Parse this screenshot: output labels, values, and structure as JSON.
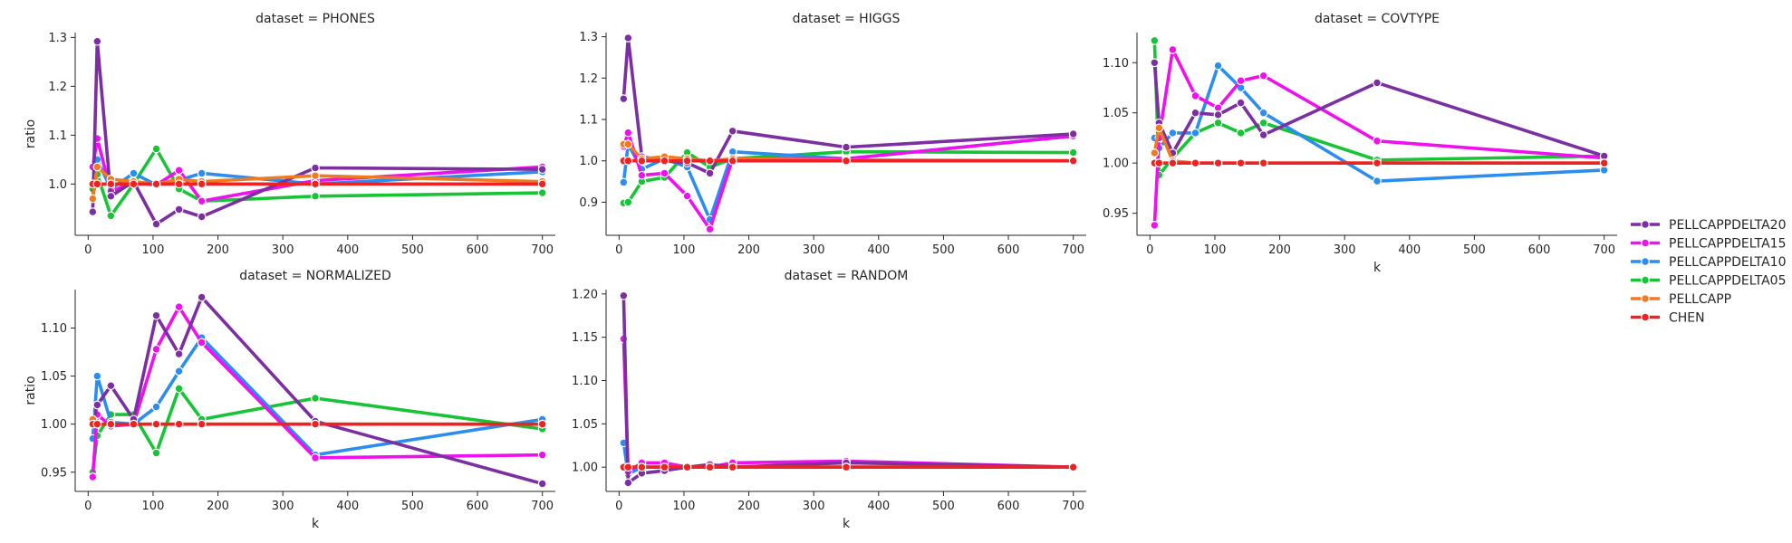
{
  "chart_data": [
    {
      "type": "line",
      "title": "dataset = PHONES",
      "xlabel": "",
      "ylabel": "ratio",
      "xlim": [
        -20,
        720
      ],
      "ylim": [
        0.895,
        1.31
      ],
      "xticks": [
        0,
        100,
        200,
        300,
        400,
        500,
        600,
        700
      ],
      "yticks": [
        1.0,
        1.1,
        1.2,
        1.3
      ],
      "yticklabels": [
        "1.0",
        "1.1",
        "1.2",
        "1.3"
      ],
      "x": [
        7,
        14,
        35,
        70,
        105,
        140,
        175,
        350,
        700
      ],
      "series": [
        {
          "name": "PELLCAPPDELTA20",
          "values": [
            0.943,
            1.292,
            0.975,
            1.005,
            0.918,
            0.948,
            0.933,
            1.033,
            1.03
          ]
        },
        {
          "name": "PELLCAPPDELTA15",
          "values": [
            1.035,
            1.093,
            0.985,
            1.003,
            0.998,
            1.028,
            0.965,
            1.007,
            1.035
          ]
        },
        {
          "name": "PELLCAPPDELTA10",
          "values": [
            1.002,
            1.05,
            0.99,
            1.022,
            0.998,
            1.008,
            1.022,
            1.0,
            1.025
          ]
        },
        {
          "name": "PELLCAPPDELTA05",
          "values": [
            0.99,
            1.02,
            0.935,
            1.0,
            1.072,
            0.99,
            0.965,
            0.975,
            0.982
          ]
        },
        {
          "name": "PELLCAPP",
          "values": [
            0.97,
            1.035,
            1.01,
            1.005,
            1.0,
            1.01,
            1.005,
            1.017,
            1.005
          ]
        },
        {
          "name": "CHEN",
          "values": [
            1.0,
            1.0,
            1.0,
            1.0,
            1.0,
            1.0,
            1.0,
            1.0,
            1.0
          ]
        }
      ]
    },
    {
      "type": "line",
      "title": "dataset = HIGGS",
      "xlabel": "",
      "ylabel": "",
      "xlim": [
        -20,
        720
      ],
      "ylim": [
        0.82,
        1.31
      ],
      "xticks": [
        0,
        100,
        200,
        300,
        400,
        500,
        600,
        700
      ],
      "yticks": [
        0.9,
        1.0,
        1.1,
        1.2,
        1.3
      ],
      "yticklabels": [
        "0.9",
        "1.0",
        "1.1",
        "1.2",
        "1.3"
      ],
      "x": [
        7,
        14,
        35,
        70,
        105,
        140,
        175,
        350,
        700
      ],
      "series": [
        {
          "name": "PELLCAPPDELTA20",
          "values": [
            1.15,
            1.297,
            1.01,
            1.0,
            0.995,
            0.97,
            1.072,
            1.033,
            1.065
          ]
        },
        {
          "name": "PELLCAPPDELTA15",
          "values": [
            1.035,
            1.068,
            0.965,
            0.97,
            0.915,
            0.835,
            1.005,
            1.005,
            1.06
          ]
        },
        {
          "name": "PELLCAPPDELTA10",
          "values": [
            0.948,
            1.04,
            0.98,
            1.005,
            0.985,
            0.858,
            1.022,
            1.005,
            1.06
          ]
        },
        {
          "name": "PELLCAPPDELTA05",
          "values": [
            0.898,
            0.9,
            0.95,
            0.96,
            1.02,
            0.985,
            1.005,
            1.022,
            1.02
          ]
        },
        {
          "name": "PELLCAPP",
          "values": [
            1.04,
            1.04,
            1.005,
            1.01,
            1.005,
            1.0,
            1.005,
            1.002,
            1.0
          ]
        },
        {
          "name": "CHEN",
          "values": [
            1.0,
            1.0,
            1.0,
            1.0,
            1.0,
            1.0,
            1.0,
            1.0,
            1.0
          ]
        }
      ]
    },
    {
      "type": "line",
      "title": "dataset = COVTYPE",
      "xlabel": "k",
      "ylabel": "",
      "xlim": [
        -20,
        720
      ],
      "ylim": [
        0.928,
        1.13
      ],
      "xticks": [
        0,
        100,
        200,
        300,
        400,
        500,
        600,
        700
      ],
      "yticks": [
        0.95,
        1.0,
        1.05,
        1.1
      ],
      "yticklabels": [
        "0.95",
        "1.00",
        "1.05",
        "1.10"
      ],
      "x": [
        7,
        14,
        35,
        70,
        105,
        140,
        175,
        350,
        700
      ],
      "series": [
        {
          "name": "PELLCAPPDELTA20",
          "values": [
            1.1,
            1.04,
            1.01,
            1.05,
            1.048,
            1.06,
            1.028,
            1.08,
            1.007
          ]
        },
        {
          "name": "PELLCAPPDELTA15",
          "values": [
            0.938,
            1.025,
            1.113,
            1.067,
            1.055,
            1.082,
            1.087,
            1.022,
            1.005
          ]
        },
        {
          "name": "PELLCAPPDELTA10",
          "values": [
            1.025,
            1.015,
            1.03,
            1.03,
            1.097,
            1.075,
            1.05,
            0.982,
            0.993
          ]
        },
        {
          "name": "PELLCAPPDELTA05",
          "values": [
            1.122,
            0.988,
            1.005,
            1.03,
            1.04,
            1.03,
            1.04,
            1.003,
            1.007
          ]
        },
        {
          "name": "PELLCAPP",
          "values": [
            1.01,
            1.035,
            1.002,
            1.0,
            1.0,
            1.0,
            1.0,
            1.0,
            1.0
          ]
        },
        {
          "name": "CHEN",
          "values": [
            1.0,
            1.0,
            1.0,
            1.0,
            1.0,
            1.0,
            1.0,
            1.0,
            1.0
          ]
        }
      ]
    },
    {
      "type": "line",
      "title": "dataset = NORMALIZED",
      "xlabel": "k",
      "ylabel": "ratio",
      "xlim": [
        -20,
        720
      ],
      "ylim": [
        0.93,
        1.14
      ],
      "xticks": [
        0,
        100,
        200,
        300,
        400,
        500,
        600,
        700
      ],
      "yticks": [
        0.95,
        1.0,
        1.05,
        1.1
      ],
      "yticklabels": [
        "0.95",
        "1.00",
        "1.05",
        "1.10"
      ],
      "x": [
        7,
        14,
        35,
        70,
        105,
        140,
        175,
        350,
        700
      ],
      "series": [
        {
          "name": "PELLCAPPDELTA20",
          "values": [
            1.0,
            1.02,
            1.04,
            1.005,
            1.113,
            1.073,
            1.132,
            1.003,
            0.938
          ]
        },
        {
          "name": "PELLCAPPDELTA15",
          "values": [
            0.945,
            1.01,
            0.998,
            1.0,
            1.078,
            1.122,
            1.085,
            0.965,
            0.968
          ]
        },
        {
          "name": "PELLCAPPDELTA10",
          "values": [
            0.985,
            1.05,
            1.002,
            1.0,
            1.018,
            1.055,
            1.09,
            0.968,
            1.005
          ]
        },
        {
          "name": "PELLCAPPDELTA05",
          "values": [
            0.95,
            0.988,
            1.01,
            1.01,
            0.97,
            1.037,
            1.005,
            1.027,
            0.995
          ]
        },
        {
          "name": "PELLCAPP",
          "values": [
            1.005,
            1.0,
            1.0,
            1.0,
            1.0,
            1.0,
            1.0,
            1.0,
            1.0
          ]
        },
        {
          "name": "CHEN",
          "values": [
            1.0,
            1.0,
            1.0,
            1.0,
            1.0,
            1.0,
            1.0,
            1.0,
            1.0
          ]
        }
      ]
    },
    {
      "type": "line",
      "title": "dataset = RANDOM",
      "xlabel": "k",
      "ylabel": "",
      "xlim": [
        -20,
        720
      ],
      "ylim": [
        0.972,
        1.205
      ],
      "xticks": [
        0,
        100,
        200,
        300,
        400,
        500,
        600,
        700
      ],
      "yticks": [
        1.0,
        1.05,
        1.1,
        1.15,
        1.2
      ],
      "yticklabels": [
        "1.00",
        "1.05",
        "1.10",
        "1.15",
        "1.20"
      ],
      "x": [
        7,
        14,
        35,
        70,
        105,
        140,
        175,
        350,
        700
      ],
      "series": [
        {
          "name": "PELLCAPPDELTA20",
          "values": [
            1.198,
            0.982,
            0.993,
            0.996,
            1.0,
            1.003,
            1.0,
            1.005,
            1.0
          ]
        },
        {
          "name": "PELLCAPPDELTA15",
          "values": [
            1.148,
            0.995,
            1.005,
            1.005,
            1.0,
            1.0,
            1.005,
            1.007,
            1.0
          ]
        },
        {
          "name": "PELLCAPPDELTA10",
          "values": [
            1.028,
            0.992,
            1.0,
            1.0,
            1.0,
            1.0,
            1.0,
            1.0,
            1.0
          ]
        },
        {
          "name": "PELLCAPPDELTA05",
          "values": [
            1.0,
            1.0,
            1.0,
            1.0,
            1.0,
            1.0,
            1.0,
            1.0,
            1.0
          ]
        },
        {
          "name": "PELLCAPP",
          "values": [
            1.0,
            1.0,
            1.0,
            1.0,
            1.0,
            1.0,
            1.0,
            1.0,
            1.0
          ]
        },
        {
          "name": "CHEN",
          "values": [
            1.0,
            1.0,
            1.0,
            1.0,
            1.0,
            1.0,
            1.0,
            1.0,
            1.0
          ]
        }
      ]
    }
  ],
  "legend": {
    "entries": [
      "PELLCAPPDELTA20",
      "PELLCAPPDELTA15",
      "PELLCAPPDELTA10",
      "PELLCAPPDELTA05",
      "PELLCAPP",
      "CHEN"
    ]
  },
  "colors": {
    "PELLCAPPDELTA20": "#7b2fa0",
    "PELLCAPPDELTA15": "#ee11ee",
    "PELLCAPPDELTA10": "#2b8eef",
    "PELLCAPPDELTA05": "#16c436",
    "PELLCAPP": "#f07a22",
    "CHEN": "#ee2222"
  }
}
